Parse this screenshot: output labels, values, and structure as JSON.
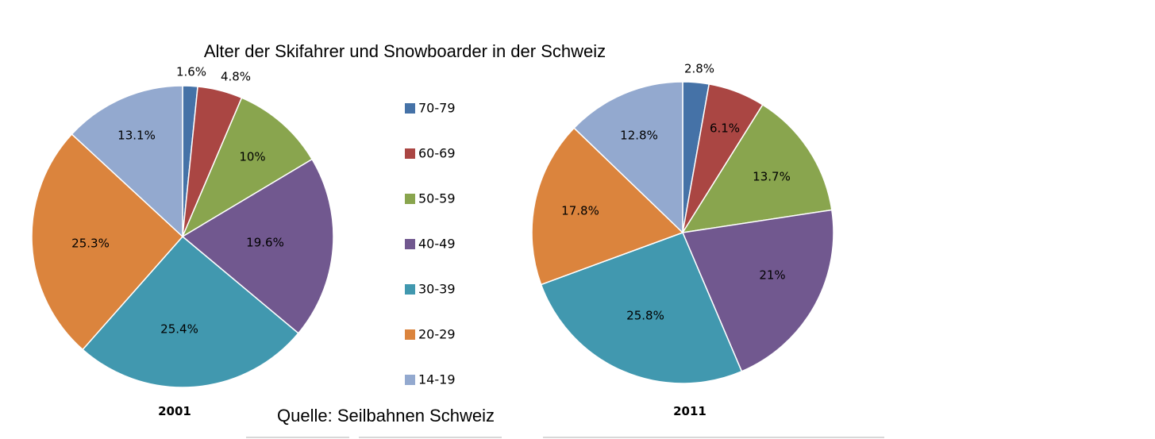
{
  "chart_data": {
    "type": "pie",
    "title": "Alter der Skifahrer und Snowboarder in der Schweiz",
    "source": "Quelle: Seilbahnen Schweiz",
    "legend_position": "center",
    "categories": [
      "70-79",
      "60-69",
      "50-59",
      "40-49",
      "30-39",
      "20-29",
      "14-19"
    ],
    "colors": [
      "#4572A7",
      "#AA4643",
      "#89A54E",
      "#71588F",
      "#4198AF",
      "#DB843D",
      "#93A9CF"
    ],
    "series": [
      {
        "name": "2001",
        "values": [
          1.6,
          4.8,
          10,
          19.6,
          25.4,
          25.3,
          13.1
        ],
        "labels": [
          "1.6%",
          "4.8%",
          "10%",
          "19.6%",
          "25.4%",
          "25.3%",
          "13.1%"
        ]
      },
      {
        "name": "2011",
        "values": [
          2.8,
          6.1,
          13.7,
          21,
          25.8,
          17.8,
          12.8
        ],
        "labels": [
          "2.8%",
          "6.1%",
          "13.7%",
          "21%",
          "25.8%",
          "17.8%",
          "12.8%"
        ]
      }
    ]
  }
}
